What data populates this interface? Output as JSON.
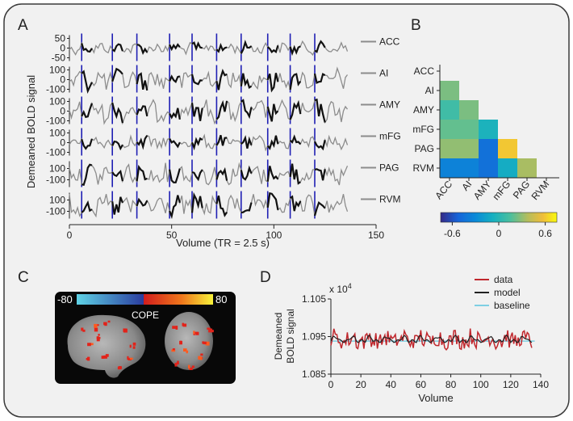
{
  "panels": {
    "A": {
      "letter": "A",
      "ylabel": "Demeaned BOLD signal",
      "xlabel": "Volume (TR = 2.5 s)",
      "xticks": [
        "0",
        "50",
        "100",
        "150"
      ],
      "xlim": [
        0,
        150
      ],
      "onsets": [
        6,
        21,
        33,
        49,
        60,
        72,
        84,
        97,
        108,
        120
      ],
      "rows": [
        {
          "label": "ACC",
          "ticks": [
            "50",
            "0",
            "-50"
          ]
        },
        {
          "label": "AI",
          "ticks": [
            "100",
            "0",
            "-100"
          ]
        },
        {
          "label": "AMY",
          "ticks": [
            "100",
            "0",
            "-100"
          ]
        },
        {
          "label": "mFG",
          "ticks": [
            "100",
            "0",
            "-100"
          ]
        },
        {
          "label": "PAG",
          "ticks": [
            "100",
            "-100"
          ]
        },
        {
          "label": "RVM",
          "ticks": [
            "100",
            "-100"
          ]
        }
      ]
    },
    "B": {
      "letter": "B",
      "rows": [
        "ACC",
        "AI",
        "AMY",
        "mFG",
        "PAG",
        "RVM"
      ],
      "cols": [
        "ACC",
        "AI",
        "AMY",
        "mFG",
        "PAG",
        "RVM"
      ],
      "values": [
        [
          0.25
        ],
        [
          0.1,
          0.25
        ],
        [
          0.2,
          0.2,
          -0.05
        ],
        [
          0.3,
          0.3,
          -0.45,
          0.6
        ],
        [
          -0.35,
          -0.35,
          -0.45,
          -0.1,
          0.35
        ]
      ],
      "colorbar_ticks": [
        "-0.6",
        "0",
        "0.6"
      ],
      "colorbar_range": [
        -0.75,
        0.75
      ]
    },
    "C": {
      "letter": "C",
      "scale_min": "-80",
      "scale_max": "80",
      "scale_label": "COPE"
    },
    "D": {
      "letter": "D",
      "ylabel_line1": "Demeaned",
      "ylabel_line2": "BOLD signal",
      "xlabel": "Volume",
      "exponent": "x 10",
      "exponent_sup": "4",
      "yticks": [
        "1.105",
        "1.095",
        "1.085"
      ],
      "ylim": [
        1.085,
        1.105
      ],
      "xticks": [
        "0",
        "20",
        "40",
        "60",
        "80",
        "100",
        "120",
        "140"
      ],
      "xlim": [
        0,
        140
      ],
      "legend": [
        {
          "label": "data",
          "color": "#c0272d"
        },
        {
          "label": "model",
          "color": "#222222"
        },
        {
          "label": "baseline",
          "color": "#7ecfe3"
        }
      ],
      "baseline": 1.0938
    }
  }
}
